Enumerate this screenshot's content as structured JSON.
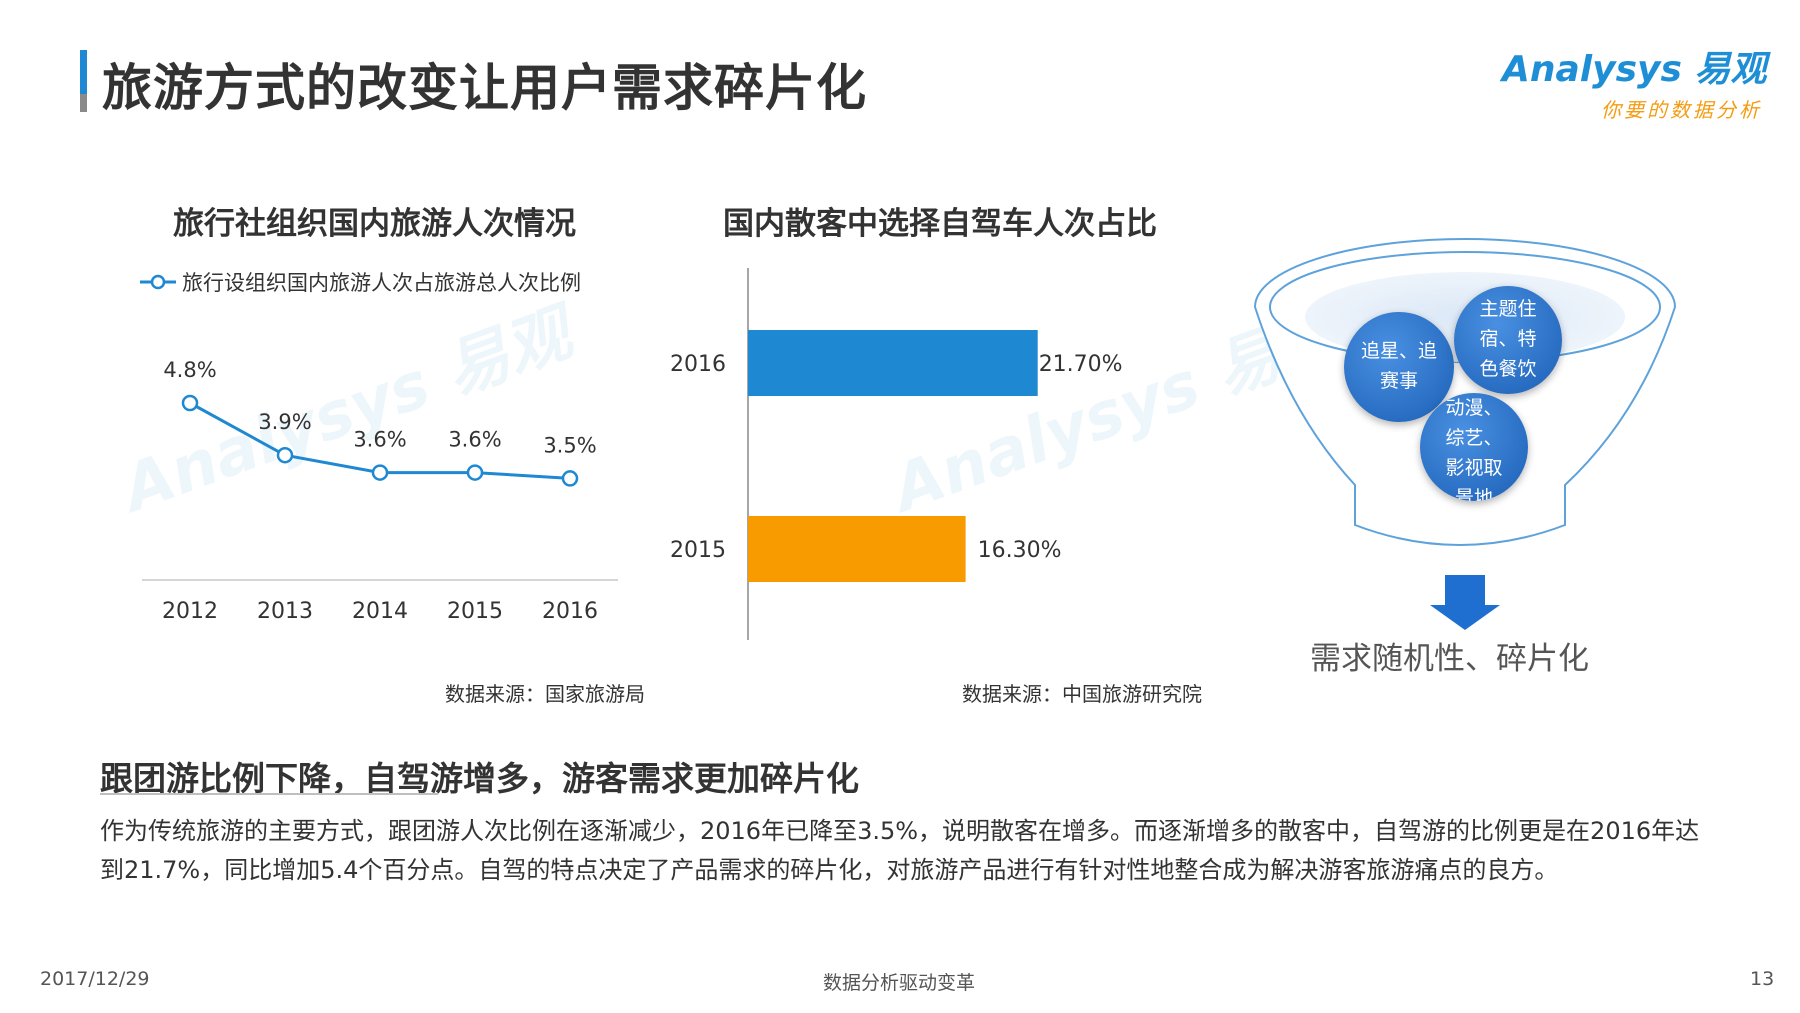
{
  "header": {
    "title": "旅游方式的改变让用户需求碎片化",
    "logo_main": "Analysys 易观",
    "logo_sub": "你要的数据分析"
  },
  "left_chart_section": {
    "title": "旅行社组织国内旅游人次情况",
    "source": "数据来源：国家旅游局"
  },
  "right_chart_section": {
    "title": "国内散客中选择自驾车人次占比",
    "source": "数据来源：中国旅游研究院"
  },
  "chart_data": [
    {
      "type": "line",
      "title": "旅行社组织国内旅游人次情况",
      "x": [
        "2012",
        "2013",
        "2014",
        "2015",
        "2016"
      ],
      "series": [
        {
          "name": "旅行设组织国内旅游人次占旅游总人次比例",
          "values": [
            4.8,
            3.9,
            3.6,
            3.6,
            3.5
          ],
          "labels": [
            "4.8%",
            "3.9%",
            "3.6%",
            "3.6%",
            "3.5%"
          ],
          "color": "#1e88d2"
        }
      ],
      "legend": "top",
      "grid": false
    },
    {
      "type": "bar",
      "orientation": "horizontal",
      "title": "国内散客中选择自驾车人次占比",
      "categories": [
        "2016",
        "2015"
      ],
      "values": [
        21.7,
        16.3
      ],
      "labels": [
        "21.70%",
        "16.30%"
      ],
      "colors": [
        "#1e88d2",
        "#f79b00"
      ],
      "xlim": [
        0,
        27
      ]
    }
  ],
  "funnel": {
    "bubbles": [
      {
        "label": "追星、追赛事"
      },
      {
        "label": "主题住宿、特色餐饮"
      },
      {
        "label": "动漫、综艺、影视取景地"
      }
    ],
    "result_label": "需求随机性、碎片化",
    "color": "#1e88d2"
  },
  "summary": {
    "title": "跟团游比例下降，自驾游增多，游客需求更加碎片化",
    "text": "作为传统旅游的主要方式，跟团游人次比例在逐渐减少，2016年已降至3.5%，说明散客在增多。而逐渐增多的散客中，自驾游的比例更是在2016年达到21.7%，同比增加5.4个百分点。自驾的特点决定了产品需求的碎片化，对旅游产品进行有针对性地整合成为解决游客旅游痛点的良方。"
  },
  "footer": {
    "date": "2017/12/29",
    "center": "数据分析驱动变革",
    "page": "13"
  }
}
